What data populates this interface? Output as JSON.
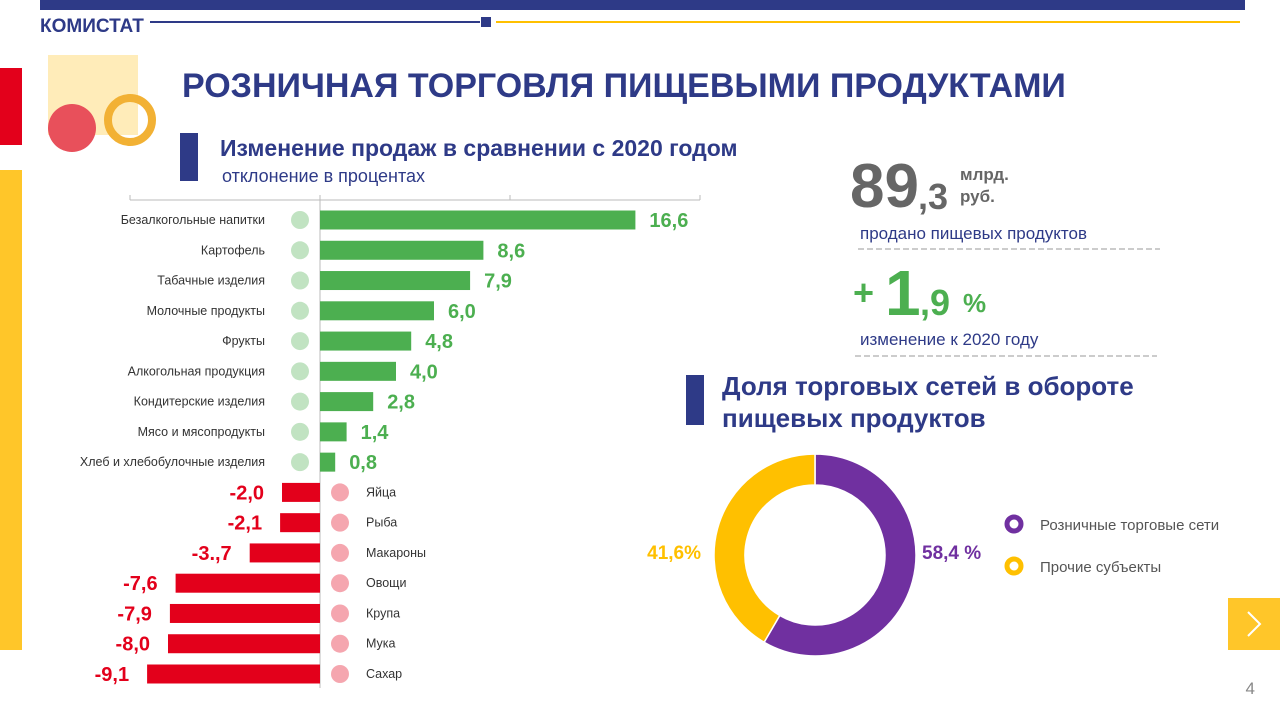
{
  "header": {
    "brand": "КОМИСТАТ",
    "title": "РОЗНИЧНАЯ ТОРГОВЛЯ ПИЩЕВЫМИ ПРОДУКТАМИ",
    "page": "4"
  },
  "stats": {
    "sold_int": "89",
    "sold_frac": ",3",
    "sold_unit1": "млрд.",
    "sold_unit2": "руб.",
    "sold_caption": "продано пищевых  продуктов",
    "change_sign": "+",
    "change_int": "1",
    "change_frac": ",9",
    "change_unit": "%",
    "change_caption": "изменение к 2020 году"
  },
  "chart_data": [
    {
      "type": "hbar",
      "title": "Изменение продаж в сравнении с 2020 годом",
      "subtitle": "отклонение  в процентах",
      "categories": [
        "Безалкогольные  напитки",
        "Картофель",
        "Табачные  изделия",
        "Молочные  продукты",
        "Фрукты",
        "Алкогольная  продукция",
        "Кондитерские  изделия",
        "Мясо и мясопродукты",
        "Хлеб  и хлебобулочные  изделия",
        "Яйца",
        "Рыба",
        "Макароны",
        "Овощи",
        "Крупа",
        "Мука",
        "Сахар"
      ],
      "values": [
        16.6,
        8.6,
        7.9,
        6.0,
        4.8,
        4.0,
        2.8,
        1.4,
        0.8,
        -2.0,
        -2.1,
        -3.7,
        -7.6,
        -7.9,
        -8.0,
        -9.1
      ],
      "value_labels": [
        "16,6",
        "8,6",
        "7,9",
        "6,0",
        "4,8",
        "4,0",
        "2,8",
        "1,4",
        "0,8",
        "-2,0",
        "-2,1",
        "-3.,7",
        "-7,6",
        "-7,9",
        "-8,0",
        "-9,1"
      ],
      "color": "#4caf50",
      "negative_color": "#e3001b",
      "xlim": [
        -10,
        20
      ],
      "xticks": [
        -10,
        0,
        10,
        20
      ]
    },
    {
      "type": "donut",
      "title": "Доля торговых сетей в обороте пищевых продуктов",
      "categories": [
        "Розничные  торговые сети",
        "Прочие  субъекты"
      ],
      "values": [
        58.4,
        41.6
      ],
      "value_labels": [
        "58,4 %",
        "41,6%"
      ],
      "colors": [
        "#7030a0",
        "#ffc000"
      ]
    }
  ]
}
